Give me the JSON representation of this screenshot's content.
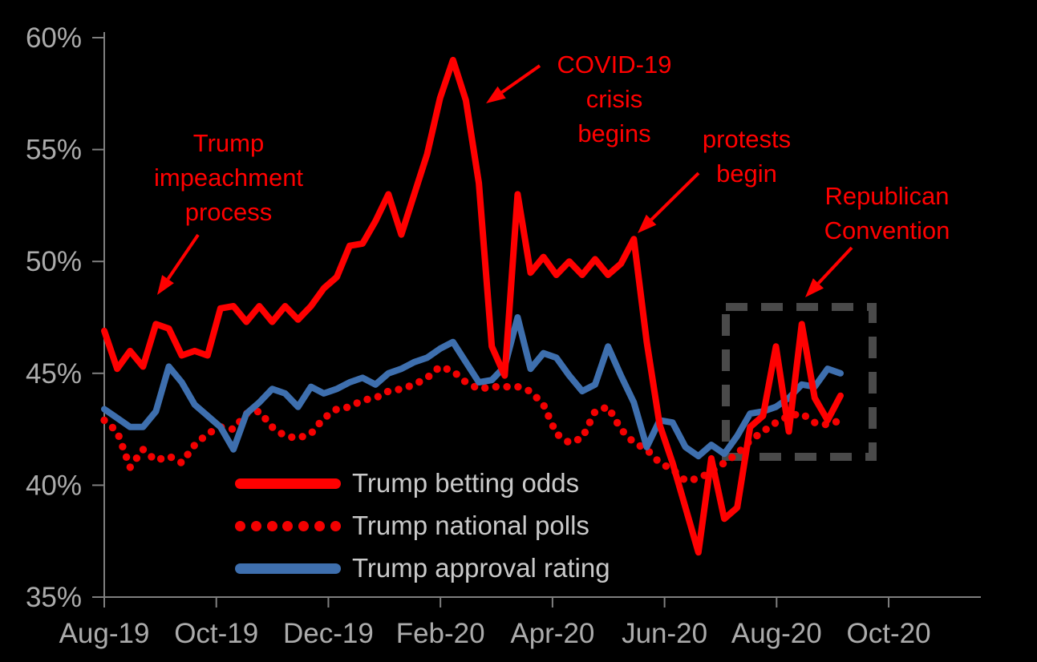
{
  "chart_data": {
    "type": "line",
    "title": "",
    "xlabel": "",
    "ylabel": "",
    "ylim": [
      35,
      60
    ],
    "grid": false,
    "background": "#000000",
    "y_ticks": [
      "60%",
      "55%",
      "50%",
      "45%",
      "40%",
      "35%"
    ],
    "y_tick_values": [
      60,
      55,
      50,
      45,
      40,
      35
    ],
    "x_ticks": [
      "Aug-19",
      "Oct-19",
      "Dec-19",
      "Feb-20",
      "Apr-20",
      "Jun-20",
      "Aug-20",
      "Oct-20"
    ],
    "x": [
      "2019-08-01",
      "2019-08-08",
      "2019-08-15",
      "2019-08-22",
      "2019-08-29",
      "2019-09-05",
      "2019-09-12",
      "2019-09-19",
      "2019-09-26",
      "2019-10-03",
      "2019-10-10",
      "2019-10-17",
      "2019-10-24",
      "2019-10-31",
      "2019-11-07",
      "2019-11-14",
      "2019-11-21",
      "2019-11-28",
      "2019-12-05",
      "2019-12-12",
      "2019-12-19",
      "2019-12-26",
      "2020-01-02",
      "2020-01-09",
      "2020-01-16",
      "2020-01-23",
      "2020-01-30",
      "2020-02-06",
      "2020-02-13",
      "2020-02-20",
      "2020-02-27",
      "2020-03-05",
      "2020-03-12",
      "2020-03-19",
      "2020-03-26",
      "2020-04-02",
      "2020-04-09",
      "2020-04-16",
      "2020-04-23",
      "2020-04-30",
      "2020-05-07",
      "2020-05-14",
      "2020-05-21",
      "2020-05-28",
      "2020-06-04",
      "2020-06-11",
      "2020-06-18",
      "2020-06-25",
      "2020-07-02",
      "2020-07-09",
      "2020-07-16",
      "2020-07-23",
      "2020-07-30",
      "2020-08-06",
      "2020-08-13",
      "2020-08-20",
      "2020-08-27",
      "2020-09-03"
    ],
    "series": [
      {
        "name": "Trump betting odds",
        "style": "solid",
        "color": "#FF0000",
        "values": [
          46.9,
          45.2,
          46.0,
          45.3,
          47.2,
          47.0,
          45.8,
          46.0,
          45.8,
          47.9,
          48.0,
          47.3,
          48.0,
          47.3,
          48.0,
          47.4,
          48.0,
          48.8,
          49.3,
          50.7,
          50.8,
          51.8,
          53.0,
          51.2,
          53.0,
          54.8,
          57.3,
          59.0,
          57.2,
          53.5,
          46.2,
          44.9,
          53.0,
          49.5,
          50.2,
          49.4,
          50.0,
          49.4,
          50.1,
          49.4,
          49.9,
          51.0,
          46.4,
          42.7,
          41.0,
          39.0,
          37.0,
          41.2,
          38.5,
          39.0,
          42.6,
          43.1,
          46.2,
          42.4,
          47.2,
          43.9,
          42.9,
          44.0
        ]
      },
      {
        "name": "Trump national polls",
        "style": "dotted",
        "color": "#F40000",
        "values": [
          42.9,
          42.4,
          40.8,
          41.6,
          41.1,
          41.3,
          41.0,
          41.8,
          42.3,
          42.6,
          42.5,
          43.2,
          43.3,
          42.6,
          42.2,
          42.1,
          42.3,
          43.0,
          43.4,
          43.5,
          43.8,
          43.9,
          44.2,
          44.3,
          44.5,
          44.8,
          45.3,
          45.1,
          44.6,
          44.3,
          44.4,
          44.4,
          44.4,
          44.2,
          43.6,
          42.3,
          41.9,
          42.1,
          43.3,
          43.5,
          42.5,
          41.9,
          41.6,
          41.0,
          40.7,
          40.2,
          40.3,
          40.6,
          41.0,
          41.4,
          42.0,
          42.4,
          42.8,
          43.1,
          43.2,
          42.8,
          42.7,
          42.9
        ]
      },
      {
        "name": "Trump approval rating",
        "style": "solid",
        "color": "#3E6FAE",
        "values": [
          43.4,
          43.0,
          42.6,
          42.6,
          43.3,
          45.3,
          44.6,
          43.6,
          43.1,
          42.6,
          41.6,
          43.2,
          43.7,
          44.3,
          44.1,
          43.5,
          44.4,
          44.1,
          44.3,
          44.6,
          44.8,
          44.5,
          45.0,
          45.2,
          45.5,
          45.7,
          46.1,
          46.4,
          45.5,
          44.6,
          44.7,
          45.3,
          47.5,
          45.2,
          45.9,
          45.7,
          44.9,
          44.2,
          44.5,
          46.2,
          44.9,
          43.7,
          41.7,
          42.9,
          42.8,
          41.7,
          41.3,
          41.8,
          41.4,
          42.2,
          43.2,
          43.3,
          43.5,
          43.9,
          44.5,
          44.4,
          45.2,
          45.0
        ]
      }
    ],
    "annotations": [
      {
        "text": "Trump\nimpeachment\nprocess"
      },
      {
        "text": "COVID-19\ncrisis\nbegins"
      },
      {
        "text": "protests\nbegin"
      },
      {
        "text": "Republican\nConvention"
      }
    ],
    "highlight_box": {
      "meaning": "Republican Convention period",
      "x_range": [
        "2020-07-01",
        "2020-09-20"
      ],
      "y_range": [
        41.4,
        48.0
      ]
    },
    "legend_position": "inside lower-left"
  },
  "colors": {
    "betting_odds": "#FF0000",
    "national_polls": "#F40000",
    "approval": "#3E6FAE",
    "annotation_text": "#FF0000",
    "axis_line": "#7F7F7F",
    "axis_text": "#ABABAB",
    "legend_text": "#C9C9C9",
    "highlight_box": "#4A4A4A",
    "background": "#000000"
  }
}
